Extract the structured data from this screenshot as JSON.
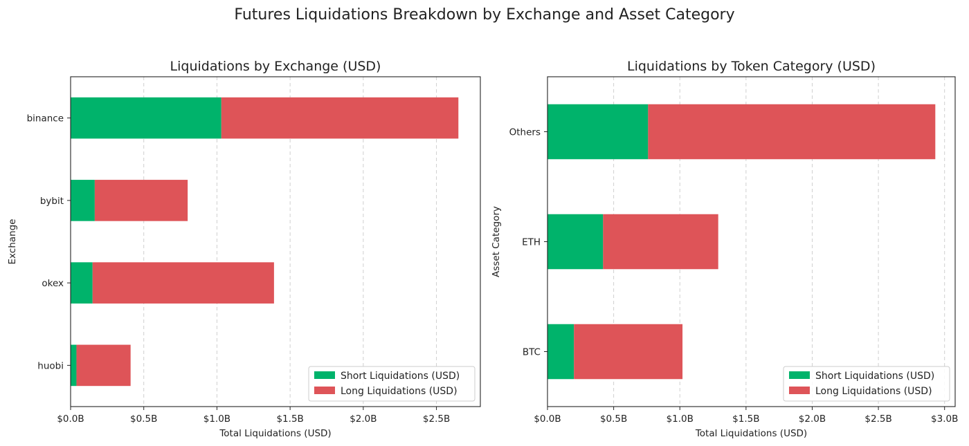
{
  "suptitle": "Futures Liquidations Breakdown by Exchange and Asset Category",
  "colors": {
    "short": "#00b36b",
    "long": "#de5458"
  },
  "chart_data": [
    {
      "type": "bar",
      "orientation": "horizontal",
      "stacked": true,
      "title": "Liquidations by Exchange (USD)",
      "xlabel": "Total Liquidations (USD)",
      "ylabel": "Exchange",
      "categories": [
        "binance",
        "bybit",
        "okex",
        "huobi"
      ],
      "series": [
        {
          "name": "Short Liquidations (USD)",
          "key": "short",
          "values": [
            1.03,
            0.165,
            0.15,
            0.04
          ]
        },
        {
          "name": "Long Liquidations (USD)",
          "key": "long",
          "values": [
            1.62,
            0.635,
            1.24,
            0.37
          ]
        }
      ],
      "xlim": [
        0,
        2.8
      ],
      "xticks": [
        0,
        0.5,
        1.0,
        1.5,
        2.0,
        2.5
      ],
      "xtick_labels": [
        "$0.0B",
        "$0.5B",
        "$1.0B",
        "$1.5B",
        "$2.0B",
        "$2.5B"
      ],
      "grid": "x",
      "legend": "lower-right"
    },
    {
      "type": "bar",
      "orientation": "horizontal",
      "stacked": true,
      "title": "Liquidations by Token Category (USD)",
      "xlabel": "Total Liquidations (USD)",
      "ylabel": "Asset Category",
      "categories": [
        "Others",
        "ETH",
        "BTC"
      ],
      "series": [
        {
          "name": "Short Liquidations (USD)",
          "key": "short",
          "values": [
            0.76,
            0.42,
            0.2
          ]
        },
        {
          "name": "Long Liquidations (USD)",
          "key": "long",
          "values": [
            2.17,
            0.87,
            0.82
          ]
        }
      ],
      "xlim": [
        0,
        3.08
      ],
      "xticks": [
        0,
        0.5,
        1.0,
        1.5,
        2.0,
        2.5,
        3.0
      ],
      "xtick_labels": [
        "$0.0B",
        "$0.5B",
        "$1.0B",
        "$1.5B",
        "$2.0B",
        "$2.5B",
        "$3.0B"
      ],
      "grid": "x",
      "legend": "lower-right"
    }
  ]
}
